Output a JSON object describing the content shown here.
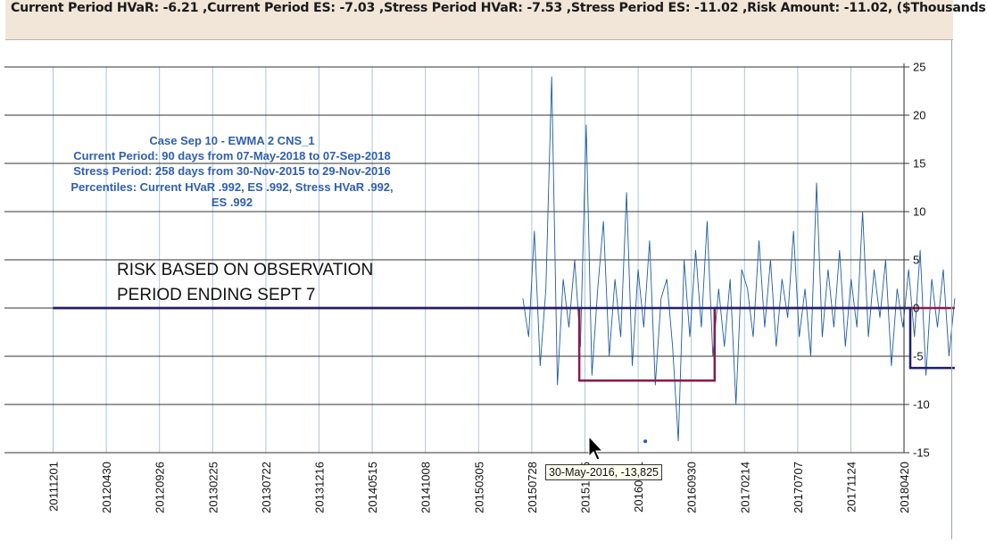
{
  "header": {
    "summary_text": "Current Period HVaR: -6.21 ,Current Period ES: -7.03 ,Stress Period HVaR: -7.53 ,Stress Period ES: -11.02 ,Risk Amount: -11.02, ($Thousands)"
  },
  "annotations": {
    "case_lines": [
      "Case Sep 10 - EWMA 2 CNS_1",
      "Current Period: 90 days from 07-May-2018 to 07-Sep-2018",
      "Stress Period: 258 days from 30-Nov-2015 to 29-Nov-2016",
      "Percentiles:  Current HVaR .992,   ES .992,   Stress HVaR .992,",
      "ES .992"
    ],
    "observation_note": [
      "RISK BASED  ON OBSERVATION",
      "PERIOD ENDING SEPT 7"
    ]
  },
  "tooltip": {
    "text": "30-May-2016, -13,825"
  },
  "colors": {
    "series": "#1f5c9e",
    "stress_line": "#8b1a4a",
    "current_line": "#1f1f6e",
    "grid": "#333333",
    "vgrid": "#a9c7dc",
    "header_bg": "#f2e6d9",
    "annotation": "#2e5fae"
  },
  "chart_data": {
    "type": "line",
    "x_tick_labels": [
      "20111201",
      "20120430",
      "20120926",
      "20130225",
      "20130722",
      "20131216",
      "20140515",
      "20141008",
      "20150305",
      "20150728",
      "20151215",
      "20160511",
      "20160930",
      "20170214",
      "20170707",
      "20171124",
      "20180420"
    ],
    "y_ticks": [
      25,
      20,
      15,
      10,
      5,
      0,
      -5,
      -10,
      -15
    ],
    "ylim": [
      -15,
      25
    ],
    "y_axis_side": "right",
    "series": [
      {
        "name": "",
        "description": "daily P&L, blue, starts around 20150728",
        "start_date": "20150728",
        "end_date": "20180907",
        "values_sampled": [
          1,
          -3,
          8,
          -6,
          2,
          24,
          -8,
          3,
          -2,
          5,
          -4,
          19,
          -7,
          2,
          9,
          -5,
          3,
          -3,
          12,
          -6,
          4,
          -2,
          7,
          -8,
          1,
          3,
          -4,
          -13.8,
          5,
          -3,
          6,
          -2,
          9,
          -5,
          2,
          -4,
          3,
          -10,
          4,
          2,
          -3,
          7,
          -2,
          5,
          -4,
          3,
          -1,
          8,
          -3,
          2,
          -5,
          13,
          -3,
          4,
          -2,
          6,
          -4,
          3,
          -2,
          10,
          -3,
          4,
          -1,
          5,
          -6,
          2,
          -2,
          4,
          -3,
          6,
          -7,
          3,
          -2,
          4,
          -5,
          1
        ]
      }
    ],
    "step_lines": [
      {
        "name": "",
        "color": "stress_line",
        "segments": [
          {
            "from": "20111201",
            "to": "20151130",
            "value": 0
          },
          {
            "from": "20151130",
            "to": "20161129",
            "value": -7.53
          },
          {
            "from": "20161129",
            "to": "20180907",
            "value": 0
          }
        ]
      },
      {
        "name": "",
        "color": "current_line",
        "segments": [
          {
            "from": "20111201",
            "to": "20180507",
            "value": 0
          },
          {
            "from": "20180507",
            "to": "20180907",
            "value": -6.21
          }
        ]
      }
    ],
    "highlighted_point": {
      "date": "20160530",
      "value": -13.825
    }
  }
}
